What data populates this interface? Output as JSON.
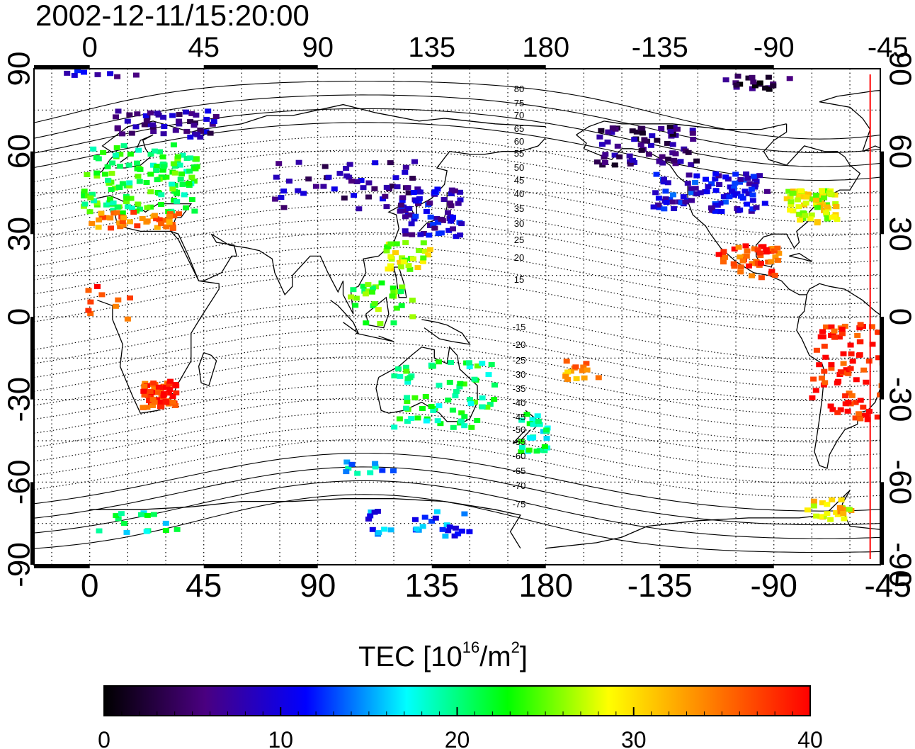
{
  "title": "2002-12-11/15:20:00",
  "map": {
    "x_tick_labels": [
      "0",
      "45",
      "90",
      "135",
      "180",
      "-135",
      "-90",
      "-45"
    ],
    "y_tick_labels": [
      "90",
      "60",
      "30",
      "0",
      "-30",
      "-60",
      "-90"
    ],
    "contour_labels_north": [
      "80",
      "75",
      "70",
      "65",
      "60",
      "55",
      "50",
      "45",
      "40",
      "35",
      "30",
      "25",
      "20",
      "15"
    ],
    "contour_labels_south": [
      "-15",
      "-20",
      "-25",
      "-30",
      "-35",
      "-40",
      "-45",
      "-50",
      "-55",
      "-60",
      "-65",
      "-70",
      "-75"
    ],
    "red_line_longitude": -52,
    "coastline_color": "#000000",
    "grid": "dotted"
  },
  "colorbar": {
    "label_main": "TEC  [10",
    "label_sup1": "16",
    "label_mid": "/m",
    "label_sup2": "2",
    "label_end": "]",
    "min": 0,
    "max": 40,
    "tick_labels": [
      "0",
      "10",
      "20",
      "30",
      "40"
    ],
    "colors": [
      "#000000",
      "#4a0080",
      "#0000ff",
      "#00ffff",
      "#00ff00",
      "#ffff00",
      "#ff8000",
      "#ff0000"
    ]
  },
  "chart_data": {
    "type": "heatmap",
    "title": "2002-12-11/15:20:00",
    "xlabel": "",
    "ylabel": "",
    "x_range": [
      -22,
      312
    ],
    "y_range": [
      -90,
      90
    ],
    "value_unit": "10^16/m^2",
    "clusters": [
      {
        "lon": 20,
        "lat": 50,
        "w": 45,
        "h": 25,
        "tec": 22,
        "n": 140
      },
      {
        "lon": 30,
        "lat": 70,
        "w": 40,
        "h": 10,
        "tec": 7,
        "n": 50
      },
      {
        "lon": 18,
        "lat": 35,
        "w": 35,
        "h": 6,
        "tec": 34,
        "n": 40
      },
      {
        "lon": 28,
        "lat": -28,
        "w": 14,
        "h": 10,
        "tec": 38,
        "n": 60
      },
      {
        "lon": 8,
        "lat": 5,
        "w": 20,
        "h": 12,
        "tec": 38,
        "n": 10
      },
      {
        "lon": 100,
        "lat": 48,
        "w": 60,
        "h": 18,
        "tec": 7,
        "n": 50
      },
      {
        "lon": 135,
        "lat": 38,
        "w": 25,
        "h": 18,
        "tec": 9,
        "n": 70
      },
      {
        "lon": 125,
        "lat": 22,
        "w": 20,
        "h": 10,
        "tec": 27,
        "n": 30
      },
      {
        "lon": 115,
        "lat": 5,
        "w": 25,
        "h": 15,
        "tec": 24,
        "n": 30
      },
      {
        "lon": 140,
        "lat": -28,
        "w": 40,
        "h": 25,
        "tec": 21,
        "n": 70
      },
      {
        "lon": 175,
        "lat": -42,
        "w": 12,
        "h": 14,
        "tec": 20,
        "n": 30
      },
      {
        "lon": 195,
        "lat": -20,
        "w": 15,
        "h": 8,
        "tec": 34,
        "n": 15
      },
      {
        "lon": 245,
        "lat": 45,
        "w": 45,
        "h": 14,
        "tec": 10,
        "n": 100
      },
      {
        "lon": 220,
        "lat": 62,
        "w": 40,
        "h": 14,
        "tec": 5,
        "n": 70
      },
      {
        "lon": 285,
        "lat": 40,
        "w": 20,
        "h": 12,
        "tec": 28,
        "n": 70
      },
      {
        "lon": 260,
        "lat": 20,
        "w": 25,
        "h": 12,
        "tec": 37,
        "n": 50
      },
      {
        "lon": 300,
        "lat": -20,
        "w": 30,
        "h": 35,
        "tec": 39,
        "n": 90
      },
      {
        "lon": 292,
        "lat": -70,
        "w": 18,
        "h": 8,
        "tec": 30,
        "n": 25
      },
      {
        "lon": 130,
        "lat": -75,
        "w": 40,
        "h": 10,
        "tec": 13,
        "n": 30
      },
      {
        "lon": 20,
        "lat": -75,
        "w": 35,
        "h": 8,
        "tec": 19,
        "n": 15
      },
      {
        "lon": 110,
        "lat": -55,
        "w": 25,
        "h": 5,
        "tec": 16,
        "n": 10
      },
      {
        "lon": 265,
        "lat": 85,
        "w": 30,
        "h": 5,
        "tec": 3,
        "n": 20
      },
      {
        "lon": 5,
        "lat": 88,
        "w": 30,
        "h": 3,
        "tec": 9,
        "n": 8
      }
    ]
  }
}
